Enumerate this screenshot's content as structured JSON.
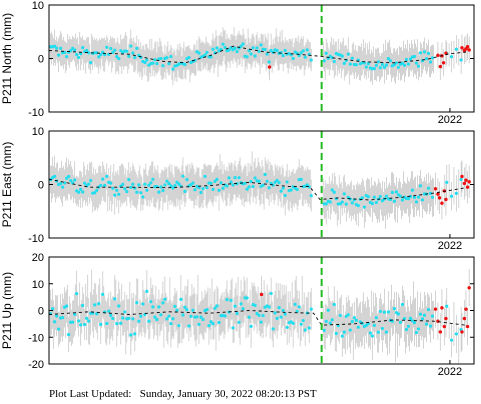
{
  "footer": {
    "label": "Plot Last Updated:",
    "value": "Sunday, January 30, 2022 08:20:13 PST"
  },
  "chart_data": [
    {
      "type": "scatter",
      "station": "P211",
      "ylabel": "P211 North (mm)",
      "ylim": [
        -10,
        10
      ],
      "yticks": [
        -10,
        0,
        10
      ],
      "xlim": [
        2017.0,
        2022.3
      ],
      "xticks": [
        {
          "value": 2022.0,
          "label": "2022"
        }
      ],
      "event_line_x": 2020.4,
      "trend": [
        [
          2017.0,
          1.5
        ],
        [
          2017.6,
          1.0
        ],
        [
          2018.0,
          0.8
        ],
        [
          2018.4,
          -0.5
        ],
        [
          2018.7,
          -0.8
        ],
        [
          2019.0,
          0.5
        ],
        [
          2019.3,
          2.3
        ],
        [
          2019.7,
          1.2
        ],
        [
          2020.1,
          0.8
        ],
        [
          2020.4,
          0.4
        ],
        [
          2020.9,
          -0.6
        ],
        [
          2021.3,
          -0.8
        ],
        [
          2021.7,
          -0.2
        ],
        [
          2022.0,
          0.9
        ],
        [
          2022.2,
          1.2
        ]
      ],
      "scatter_sd": 1.0,
      "errorbar_halfwidth": 2.5,
      "recent_red": [
        [
          2021.85,
          0.6
        ],
        [
          2021.88,
          -1.5
        ],
        [
          2021.9,
          0.5
        ],
        [
          2021.92,
          -0.8
        ],
        [
          2021.95,
          1.0
        ],
        [
          2022.15,
          2.0
        ],
        [
          2022.18,
          1.5
        ],
        [
          2022.2,
          1.8
        ],
        [
          2022.22,
          2.2
        ],
        [
          2022.24,
          1.6
        ],
        [
          2019.75,
          -1.6
        ]
      ]
    },
    {
      "type": "scatter",
      "station": "P211",
      "ylabel": "P211 East (mm)",
      "ylim": [
        -10,
        10
      ],
      "yticks": [
        -10,
        0,
        10
      ],
      "xlim": [
        2017.0,
        2022.3
      ],
      "xticks": [
        {
          "value": 2022.0,
          "label": "2022"
        }
      ],
      "event_line_x": 2020.4,
      "trend": [
        [
          2017.0,
          1.0
        ],
        [
          2017.5,
          -0.5
        ],
        [
          2018.0,
          -0.5
        ],
        [
          2018.5,
          -0.6
        ],
        [
          2019.0,
          -0.2
        ],
        [
          2019.5,
          0.4
        ],
        [
          2020.0,
          -0.4
        ],
        [
          2020.25,
          -0.4
        ],
        [
          2020.38,
          -2.8
        ],
        [
          2020.6,
          -2.5
        ],
        [
          2021.0,
          -2.9
        ],
        [
          2021.4,
          -2.4
        ],
        [
          2021.8,
          -1.6
        ],
        [
          2022.2,
          -0.6
        ]
      ],
      "scatter_sd": 1.2,
      "errorbar_halfwidth": 3.0,
      "recent_red": [
        [
          2021.82,
          -0.8
        ],
        [
          2021.85,
          -1.8
        ],
        [
          2021.87,
          -2.5
        ],
        [
          2021.9,
          -3.5
        ],
        [
          2021.93,
          -1.2
        ],
        [
          2021.95,
          -2.8
        ],
        [
          2022.15,
          1.5
        ],
        [
          2022.18,
          0.2
        ],
        [
          2022.2,
          0.8
        ],
        [
          2022.22,
          -0.5
        ],
        [
          2022.24,
          0.5
        ]
      ]
    },
    {
      "type": "scatter",
      "station": "P211",
      "ylabel": "P211 Up (mm)",
      "ylim": [
        -20,
        20
      ],
      "yticks": [
        -20,
        -10,
        0,
        10,
        20
      ],
      "xlim": [
        2017.0,
        2022.3
      ],
      "xticks": [
        {
          "value": 2022.0,
          "label": "2022"
        }
      ],
      "event_line_x": 2020.4,
      "trend": [
        [
          2017.0,
          -1.5
        ],
        [
          2017.5,
          -0.5
        ],
        [
          2018.0,
          -1.5
        ],
        [
          2018.5,
          -0.5
        ],
        [
          2019.0,
          -1.0
        ],
        [
          2019.5,
          0.0
        ],
        [
          2020.0,
          -0.8
        ],
        [
          2020.3,
          -1.0
        ],
        [
          2020.4,
          -5.5
        ],
        [
          2020.8,
          -5.0
        ],
        [
          2021.3,
          -3.5
        ],
        [
          2021.8,
          -4.0
        ],
        [
          2022.2,
          -5.5
        ]
      ],
      "scatter_sd": 4.5,
      "errorbar_halfwidth": 7.0,
      "recent_red": [
        [
          2021.82,
          0.5
        ],
        [
          2021.85,
          -4.0
        ],
        [
          2021.88,
          -8.0
        ],
        [
          2021.9,
          1.0
        ],
        [
          2021.93,
          -6.0
        ],
        [
          2021.95,
          -3.0
        ],
        [
          2022.15,
          -8.0
        ],
        [
          2022.18,
          -3.0
        ],
        [
          2022.2,
          0.5
        ],
        [
          2022.22,
          -6.0
        ],
        [
          2022.24,
          8.5
        ],
        [
          2019.65,
          6.0
        ]
      ]
    }
  ],
  "colors": {
    "points": "#22ddee",
    "recent_points": "#ee1111",
    "error_bars": "#c8c8c8",
    "trend": "#000000",
    "event_line": "#22bb22",
    "frame": "#000000"
  }
}
